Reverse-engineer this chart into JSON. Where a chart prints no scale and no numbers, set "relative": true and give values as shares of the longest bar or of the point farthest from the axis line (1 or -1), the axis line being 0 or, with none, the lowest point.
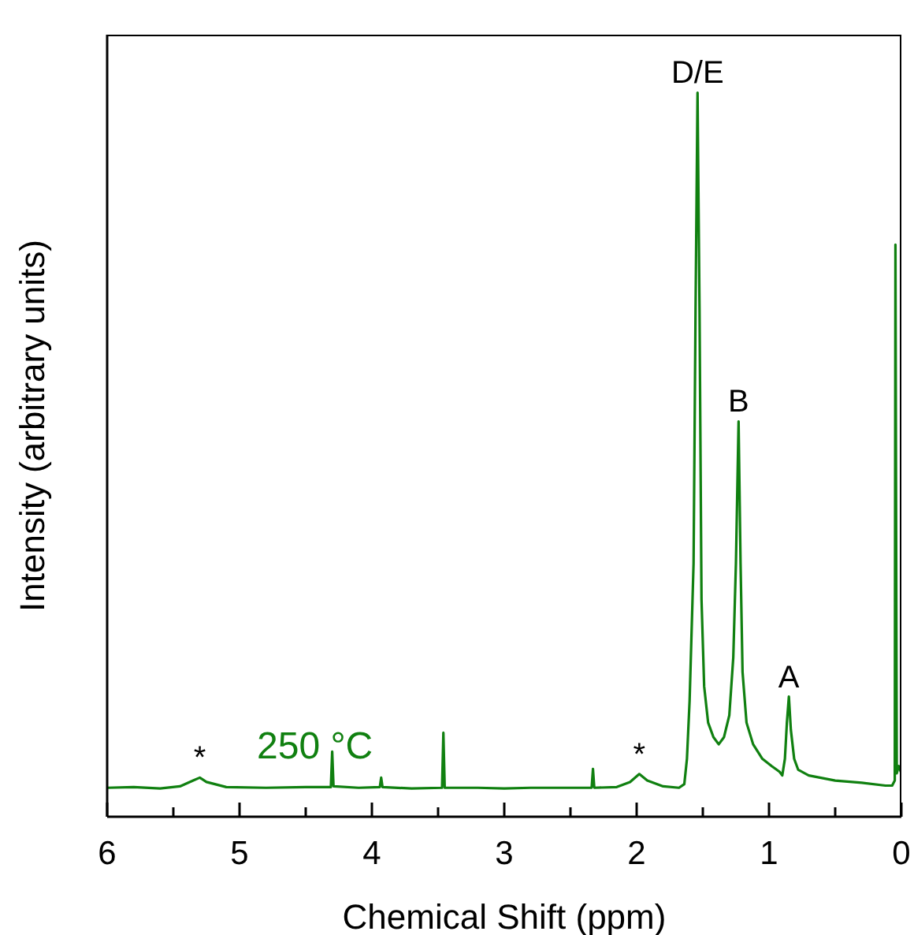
{
  "chart_data": {
    "type": "line",
    "xlabel": "Chemical Shift (ppm)",
    "ylabel": "Intensity (arbitrary units)",
    "relative": true,
    "xlim": [
      6,
      0
    ],
    "xticks": [
      6,
      {
        "value": 5.5,
        "label": null
      },
      5,
      {
        "value": 4.5,
        "label": null
      },
      4,
      {
        "value": 3.5,
        "label": null
      },
      3,
      {
        "value": 2.5,
        "label": null
      },
      2,
      {
        "value": 1.5,
        "label": null
      },
      1,
      {
        "value": 0.5,
        "label": null
      },
      0
    ],
    "line_style": "solid",
    "marker": "none",
    "series": [
      {
        "color": "#108010",
        "x": [
          6.0,
          5.8,
          5.6,
          5.45,
          5.35,
          5.3,
          5.25,
          5.1,
          4.8,
          4.5,
          4.31,
          4.3,
          4.29,
          4.1,
          3.94,
          3.93,
          3.92,
          3.7,
          3.47,
          3.46,
          3.45,
          3.2,
          3.0,
          2.8,
          2.6,
          2.34,
          2.33,
          2.32,
          2.15,
          2.05,
          1.98,
          1.92,
          1.8,
          1.68,
          1.64,
          1.62,
          1.6,
          1.57,
          1.555,
          1.54,
          1.525,
          1.51,
          1.49,
          1.46,
          1.42,
          1.38,
          1.34,
          1.3,
          1.27,
          1.25,
          1.23,
          1.215,
          1.2,
          1.17,
          1.12,
          1.05,
          0.98,
          0.92,
          0.9,
          0.88,
          0.865,
          0.85,
          0.835,
          0.81,
          0.78,
          0.7,
          0.5,
          0.3,
          0.12,
          0.07,
          0.05,
          0.045,
          0.035,
          0.02,
          0.0
        ],
        "values": [
          0.04,
          0.041,
          0.039,
          0.042,
          0.05,
          0.054,
          0.048,
          0.041,
          0.04,
          0.041,
          0.041,
          0.09,
          0.042,
          0.04,
          0.041,
          0.054,
          0.041,
          0.039,
          0.04,
          0.116,
          0.04,
          0.04,
          0.039,
          0.04,
          0.04,
          0.04,
          0.066,
          0.04,
          0.041,
          0.048,
          0.059,
          0.05,
          0.042,
          0.04,
          0.045,
          0.08,
          0.16,
          0.35,
          0.7,
          1.0,
          0.7,
          0.3,
          0.18,
          0.13,
          0.11,
          0.1,
          0.11,
          0.14,
          0.22,
          0.35,
          0.546,
          0.35,
          0.2,
          0.13,
          0.1,
          0.08,
          0.07,
          0.062,
          0.057,
          0.08,
          0.13,
          0.166,
          0.12,
          0.08,
          0.065,
          0.057,
          0.05,
          0.047,
          0.043,
          0.043,
          0.05,
          0.79,
          0.06,
          0.07,
          0.06
        ]
      }
    ],
    "annotations": [
      {
        "text": "D/E",
        "x": 1.54,
        "y": 1.0
      },
      {
        "text": "B",
        "x": 1.23,
        "y": 0.546
      },
      {
        "text": "A",
        "x": 0.85,
        "y": 0.166
      },
      {
        "text": "*",
        "x": 5.3,
        "y": 0.054
      },
      {
        "text": "*",
        "x": 1.98,
        "y": 0.059
      },
      "250 °C"
    ]
  }
}
